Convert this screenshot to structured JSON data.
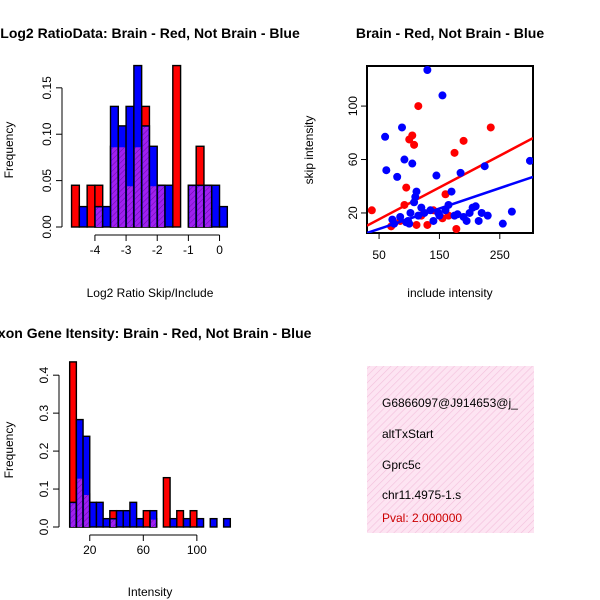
{
  "colors": {
    "brain": "#ff0000",
    "notbrain": "#0000ff",
    "overlap": "#a020f0",
    "infobg": "#fde4f2",
    "pval": "#cc0000"
  },
  "chart_data": [
    {
      "id": "ratio-hist",
      "type": "bar",
      "title": "Log2 RatioData: Brain - Red, Not Brain - Blue",
      "xlabel": "Log2 Ratio Skip/Include",
      "ylabel": "Frequency",
      "xlim": [
        -4.8,
        0.4
      ],
      "ylim": [
        0,
        0.18
      ],
      "xticks": [
        -4,
        -3,
        -2,
        -1,
        0
      ],
      "yticks": [
        0,
        0.05,
        0.1,
        0.15
      ],
      "xtick_labels": [
        "-4",
        "-3",
        "-2",
        "-1",
        "0"
      ],
      "ytick_labels": [
        "0.00",
        "0.05",
        "0.10",
        "0.15"
      ],
      "binwidth": 0.25,
      "bin_starts": [
        -4.75,
        -4.5,
        -4.25,
        -4.0,
        -3.75,
        -3.5,
        -3.25,
        -3.0,
        -2.75,
        -2.5,
        -2.25,
        -2.0,
        -1.75,
        -1.5,
        -1.25,
        -1.0,
        -0.75,
        -0.5,
        -0.25,
        0.0
      ],
      "series": [
        {
          "name": "Brain",
          "color": "red",
          "values": [
            0.045,
            0,
            0.045,
            0.045,
            0,
            0.087,
            0.087,
            0.045,
            0.087,
            0.13,
            0.045,
            0.045,
            0,
            0.174,
            0,
            0.045,
            0.087,
            0.045,
            0,
            0
          ]
        },
        {
          "name": "Not Brain",
          "color": "blue",
          "values": [
            0,
            0.022,
            0,
            0.022,
            0.022,
            0.13,
            0.109,
            0.13,
            0.174,
            0.109,
            0.087,
            0.045,
            0.045,
            0,
            0,
            0.045,
            0.045,
            0.045,
            0.045,
            0.022
          ]
        }
      ]
    },
    {
      "id": "scatter",
      "type": "scatter",
      "title": "Brain - Red, Not Brain - Blue",
      "xlabel": "include intensity",
      "ylabel": "skip intensity",
      "xlim": [
        30,
        305
      ],
      "ylim": [
        5,
        130
      ],
      "xticks": [
        50,
        150,
        250
      ],
      "yticks": [
        20,
        60,
        100
      ],
      "xtick_labels": [
        "50",
        "150",
        "250"
      ],
      "ytick_labels": [
        "20",
        "60",
        "100"
      ],
      "series": [
        {
          "name": "Brain",
          "color": "red",
          "points": [
            [
              38,
              22
            ],
            [
              70,
              10
            ],
            [
              85,
              14
            ],
            [
              92,
              26
            ],
            [
              95,
              39
            ],
            [
              100,
              75
            ],
            [
              105,
              78
            ],
            [
              108,
              71
            ],
            [
              112,
              11
            ],
            [
              115,
              100
            ],
            [
              120,
              18
            ],
            [
              130,
              11
            ],
            [
              140,
              22
            ],
            [
              155,
              16
            ],
            [
              160,
              34
            ],
            [
              165,
              18
            ],
            [
              175,
              65
            ],
            [
              178,
              8
            ],
            [
              190,
              74
            ],
            [
              235,
              84
            ]
          ],
          "fit": {
            "x": [
              30,
              305
            ],
            "y": [
              10.5,
              76
            ]
          }
        },
        {
          "name": "Not Brain",
          "color": "blue",
          "points": [
            [
              60,
              77
            ],
            [
              62,
              52
            ],
            [
              72,
              15
            ],
            [
              75,
              12
            ],
            [
              80,
              47
            ],
            [
              85,
              17
            ],
            [
              88,
              84
            ],
            [
              92,
              60
            ],
            [
              95,
              13
            ],
            [
              98,
              14
            ],
            [
              100,
              12
            ],
            [
              102,
              20
            ],
            [
              105,
              57
            ],
            [
              108,
              28
            ],
            [
              110,
              32
            ],
            [
              112,
              36
            ],
            [
              115,
              18
            ],
            [
              120,
              24
            ],
            [
              125,
              20
            ],
            [
              130,
              127
            ],
            [
              135,
              22
            ],
            [
              140,
              14
            ],
            [
              145,
              48
            ],
            [
              148,
              20
            ],
            [
              150,
              18
            ],
            [
              155,
              108
            ],
            [
              160,
              22
            ],
            [
              165,
              26
            ],
            [
              170,
              36
            ],
            [
              175,
              18
            ],
            [
              180,
              19
            ],
            [
              185,
              50
            ],
            [
              190,
              17
            ],
            [
              195,
              14
            ],
            [
              200,
              20
            ],
            [
              205,
              24
            ],
            [
              210,
              25
            ],
            [
              215,
              14
            ],
            [
              220,
              20
            ],
            [
              225,
              55
            ],
            [
              230,
              18
            ],
            [
              255,
              12
            ],
            [
              270,
              21
            ],
            [
              300,
              59
            ]
          ],
          "fit": {
            "x": [
              30,
              305
            ],
            "y": [
              5,
              47
            ]
          }
        }
      ]
    },
    {
      "id": "intensity-hist",
      "type": "bar",
      "title": "Exon Gene Itensity: Brain - Red, Not Brain - Blue",
      "xlabel": "Intensity",
      "ylabel": "Frequency",
      "xlim": [
        3,
        127
      ],
      "ylim": [
        0,
        0.44
      ],
      "xticks": [
        20,
        60,
        100
      ],
      "yticks": [
        0,
        0.1,
        0.2,
        0.3,
        0.4
      ],
      "xtick_labels": [
        "20",
        "60",
        "100"
      ],
      "ytick_labels": [
        "0.0",
        "0.1",
        "0.2",
        "0.3",
        "0.4"
      ],
      "binwidth": 5,
      "bin_starts": [
        5,
        10,
        15,
        20,
        25,
        30,
        35,
        40,
        45,
        50,
        55,
        60,
        65,
        70,
        75,
        80,
        85,
        90,
        95,
        100,
        105,
        110,
        115,
        120
      ],
      "series": [
        {
          "name": "Brain",
          "color": "red",
          "values": [
            0.435,
            0.13,
            0.087,
            0,
            0,
            0,
            0.043,
            0,
            0,
            0,
            0,
            0.043,
            0.022,
            0,
            0.13,
            0,
            0.043,
            0,
            0.043,
            0,
            0,
            0,
            0,
            0
          ]
        },
        {
          "name": "Not Brain",
          "color": "blue",
          "values": [
            0.065,
            0.283,
            0.239,
            0.065,
            0.065,
            0.022,
            0.022,
            0.043,
            0.043,
            0.065,
            0.022,
            0,
            0.043,
            0,
            0,
            0.022,
            0,
            0.022,
            0,
            0.022,
            0,
            0.022,
            0,
            0.022
          ]
        }
      ]
    }
  ],
  "info_panel": {
    "probe_id": "G6866097@J914653@j_",
    "event_type": "altTxStart",
    "gene": "Gprc5c",
    "location": "chr11.4975-1.s",
    "pval": "Pval: 2.000000"
  }
}
